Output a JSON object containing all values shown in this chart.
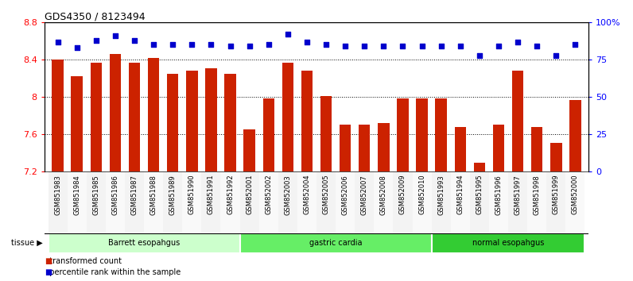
{
  "title": "GDS4350 / 8123494",
  "samples": [
    "GSM851983",
    "GSM851984",
    "GSM851985",
    "GSM851986",
    "GSM851987",
    "GSM851988",
    "GSM851989",
    "GSM851990",
    "GSM851991",
    "GSM851992",
    "GSM852001",
    "GSM852002",
    "GSM852003",
    "GSM852004",
    "GSM852005",
    "GSM852006",
    "GSM852007",
    "GSM852008",
    "GSM852009",
    "GSM852010",
    "GSM851993",
    "GSM851994",
    "GSM851995",
    "GSM851996",
    "GSM851997",
    "GSM851998",
    "GSM851999",
    "GSM852000"
  ],
  "bar_values": [
    8.4,
    8.22,
    8.37,
    8.46,
    8.37,
    8.42,
    8.25,
    8.28,
    8.31,
    8.25,
    7.65,
    7.98,
    8.37,
    8.28,
    8.01,
    7.7,
    7.7,
    7.72,
    7.98,
    7.98,
    7.98,
    7.68,
    7.29,
    7.7,
    8.28,
    7.68,
    7.51,
    7.97
  ],
  "percentile_values": [
    87,
    83,
    88,
    91,
    88,
    85,
    85,
    85,
    85,
    84,
    84,
    85,
    92,
    87,
    85,
    84,
    84,
    84,
    84,
    84,
    84,
    84,
    78,
    84,
    87,
    84,
    78,
    85
  ],
  "groups": [
    {
      "label": "Barrett esopahgus",
      "start": 0,
      "end": 9,
      "color": "#ccffcc"
    },
    {
      "label": "gastric cardia",
      "start": 10,
      "end": 19,
      "color": "#66ee66"
    },
    {
      "label": "normal esopahgus",
      "start": 20,
      "end": 27,
      "color": "#33cc33"
    }
  ],
  "bar_color": "#cc2200",
  "dot_color": "#0000cc",
  "ylim_left": [
    7.2,
    8.8
  ],
  "ylim_right": [
    0,
    100
  ],
  "yticks_left": [
    7.2,
    7.6,
    8.0,
    8.4,
    8.8
  ],
  "yticks_right": [
    0,
    25,
    50,
    75,
    100
  ],
  "ytick_labels_left": [
    "7.2",
    "7.6",
    "8",
    "8.4",
    "8.8"
  ],
  "ytick_labels_right": [
    "0",
    "25",
    "50",
    "75",
    "100%"
  ],
  "grid_values": [
    7.6,
    8.0,
    8.4
  ],
  "bar_width": 0.6,
  "plot_bg_color": "#ffffff"
}
